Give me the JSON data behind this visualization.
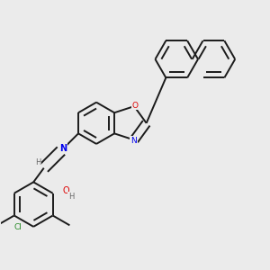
{
  "background_color": "#ebebeb",
  "bond_color": "#1a1a1a",
  "bond_width": 1.4,
  "atom_colors": {
    "C": "#1a1a1a",
    "N": "#0000ee",
    "O": "#dd0000",
    "Cl": "#228822",
    "H": "#666666"
  },
  "dbo": 0.018
}
